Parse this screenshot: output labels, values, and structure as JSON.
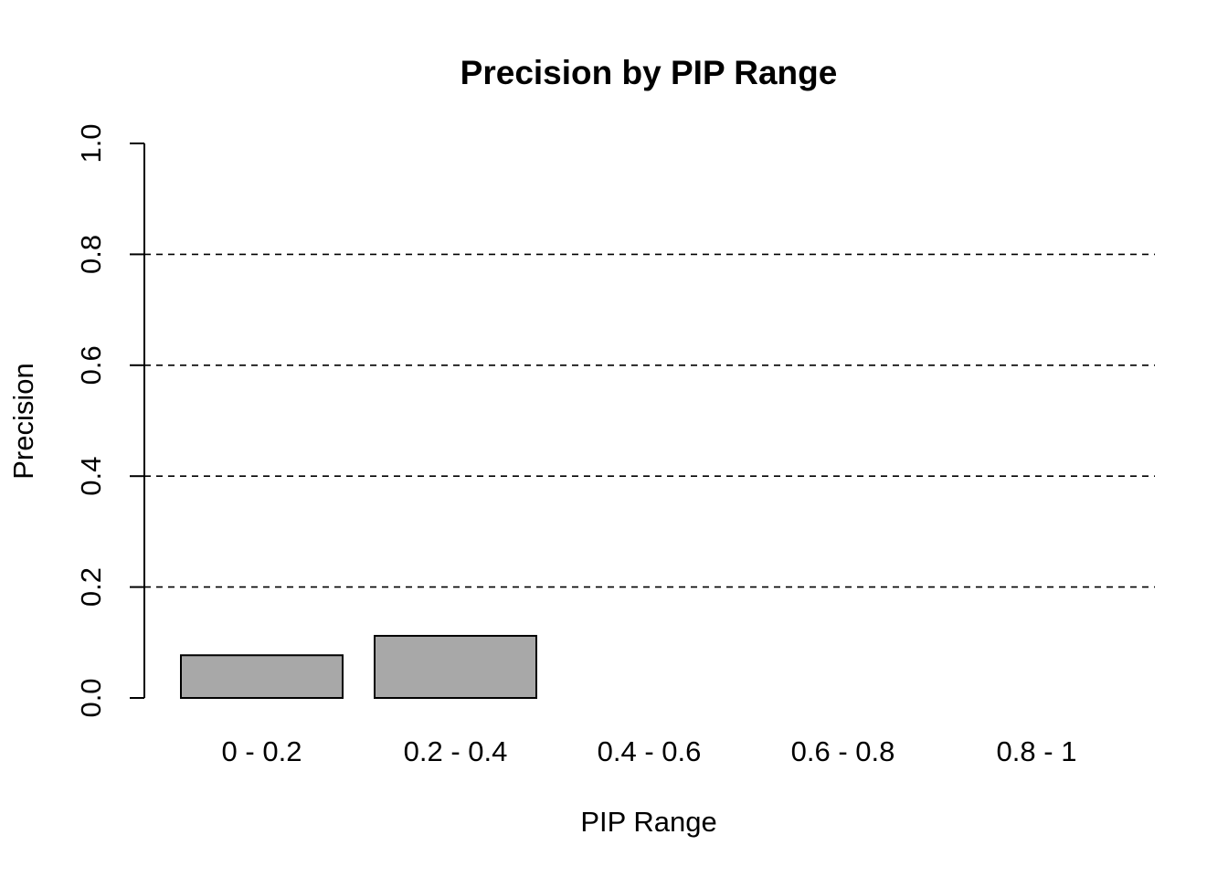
{
  "chart_data": {
    "type": "bar",
    "title": "Precision by PIP Range",
    "xlabel": "PIP Range",
    "ylabel": "Precision",
    "categories": [
      "0 - 0.2",
      "0.2 - 0.4",
      "0.4 - 0.6",
      "0.6 - 0.8",
      "0.8 - 1"
    ],
    "values": [
      0.077,
      0.112,
      0.0,
      0.0,
      null
    ],
    "ylim": [
      0,
      1
    ],
    "yticks": [
      0.0,
      0.2,
      0.4,
      0.6,
      0.8,
      1.0
    ],
    "ytick_labels": [
      "0.0",
      "0.2",
      "0.4",
      "0.6",
      "0.8",
      "1.0"
    ],
    "gridlines_y": [
      0.2,
      0.4,
      0.6,
      0.8
    ],
    "grid": true,
    "grid_style": "dashed",
    "legend": "none",
    "bar_color": "#a8a8a8"
  }
}
